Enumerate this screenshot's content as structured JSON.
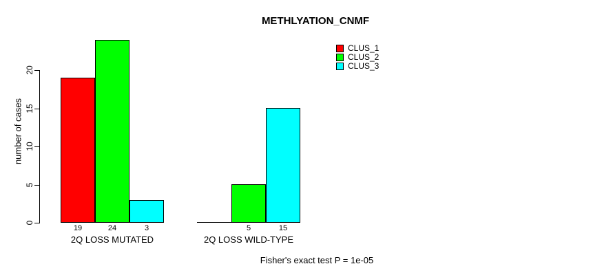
{
  "chart_data": {
    "type": "bar",
    "title": "METHLYATION_CNMF",
    "ylabel": "number of cases",
    "xlabel": "",
    "categories": [
      "2Q LOSS MUTATED",
      "2Q LOSS WILD-TYPE"
    ],
    "series": [
      {
        "name": "CLUS_1",
        "color": "#ff0000",
        "values": [
          19,
          0
        ]
      },
      {
        "name": "CLUS_2",
        "color": "#00ff00",
        "values": [
          24,
          5
        ]
      },
      {
        "name": "CLUS_3",
        "color": "#00ffff",
        "values": [
          3,
          15
        ]
      }
    ],
    "bar_value_labels": {
      "show": true,
      "hide_zero": true
    },
    "yticks": [
      0,
      5,
      10,
      15,
      20
    ],
    "ylim": [
      0,
      24
    ],
    "grid": false,
    "legend": {
      "position": "top-right",
      "entries": [
        "CLUS_1",
        "CLUS_2",
        "CLUS_3"
      ]
    },
    "annotation": "Fisher's exact test P = 1e-05",
    "bar_outline_color": "#000000",
    "background": "#ffffff"
  }
}
